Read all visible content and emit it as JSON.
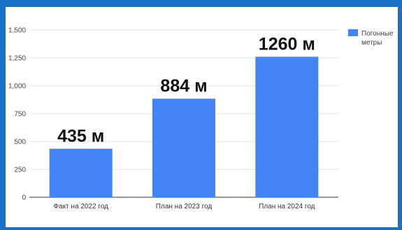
{
  "chart_data": {
    "type": "bar",
    "categories": [
      "Факт на 2022 год",
      "План на 2023 год",
      "План на 2024 год"
    ],
    "series": [
      {
        "name": "Погонные метры",
        "values": [
          435,
          884,
          1260
        ],
        "labels": [
          "435 м",
          "884 м",
          "1260 м"
        ],
        "color": "#4285f4"
      }
    ],
    "yticks": [
      0,
      250,
      500,
      750,
      1000,
      1250,
      1500
    ],
    "ytick_labels": [
      "0",
      "250",
      "500",
      "750",
      "1,000",
      "1,250",
      "1,500"
    ],
    "ylim": [
      0,
      1500
    ],
    "grid": true,
    "legend_position": "top-right",
    "legend_lines": [
      "Погонные",
      "метры"
    ],
    "title": "",
    "xlabel": "",
    "ylabel": ""
  },
  "colors": {
    "page_background": "#1873c9",
    "chart_background": "#ffffff",
    "bar": "#4285f4",
    "grid": "#e0e0e0",
    "axis": "#333333"
  }
}
